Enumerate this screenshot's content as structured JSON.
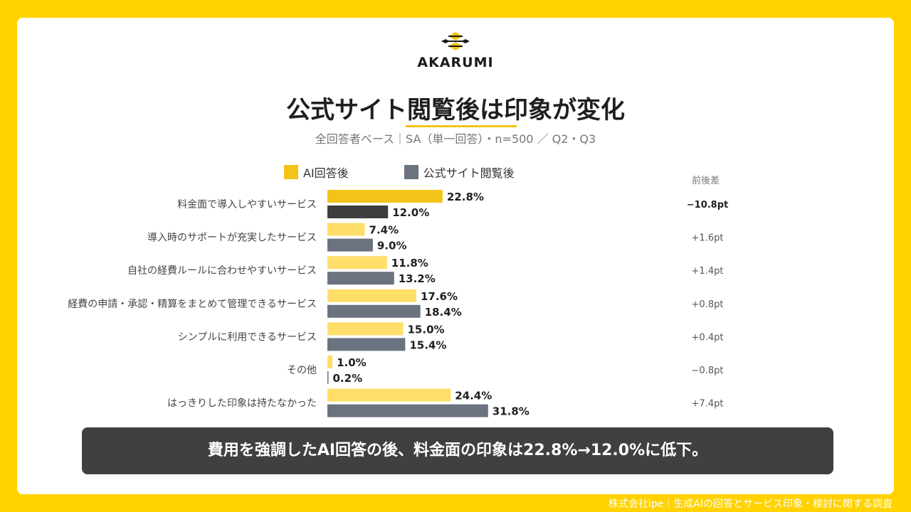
{
  "brand": {
    "name": "AKARUMI"
  },
  "title": "公式サイト閲覧後は印象が変化",
  "subtitle": "全回答者ベース｜SA（単一回答）・n=500 ／ Q2・Q3",
  "diff_header": "前後差",
  "callout": "費用を強調したAI回答の後、料金面の印象は22.8%→12.0%に低下。",
  "footer": "株式会社ipe｜生成AIの回答とサービス印象・検討に関する調査",
  "colors": {
    "background": "#FFD200",
    "ai_highlight": "#F2C318",
    "ai": "#FFDE6A",
    "site_highlight": "#3D3D3D",
    "site": "#6B7280",
    "callout": "#404040"
  },
  "chart_data": {
    "type": "bar",
    "orientation": "horizontal",
    "categories": [
      "料金面で導入しやすいサービス",
      "導入時のサポートが充実したサービス",
      "自社の経費ルールに合わせやすいサービス",
      "経費の申請・承認・精算をまとめて管理できるサービス",
      "シンプルに利用できるサービス",
      "その他",
      "はっきりした印象は持たなかった"
    ],
    "series": [
      {
        "name": "AI回答後",
        "values": [
          22.8,
          7.4,
          11.8,
          17.6,
          15.0,
          1.0,
          24.4
        ],
        "labels": [
          "22.8%",
          "7.4%",
          "11.8%",
          "17.6%",
          "15.0%",
          "1.0%",
          "24.4%"
        ]
      },
      {
        "name": "公式サイト閲覧後",
        "values": [
          12.0,
          9.0,
          13.2,
          18.4,
          15.4,
          0.2,
          31.8
        ],
        "labels": [
          "12.0%",
          "9.0%",
          "13.2%",
          "18.4%",
          "15.4%",
          "0.2%",
          "31.8%"
        ]
      }
    ],
    "differences": [
      "−10.8pt",
      "+1.6pt",
      "+1.4pt",
      "+0.8pt",
      "+0.4pt",
      "−0.8pt",
      "+7.4pt"
    ],
    "highlight_index": 0,
    "legend": "top",
    "grid": false,
    "xlim": [
      0,
      35
    ]
  }
}
